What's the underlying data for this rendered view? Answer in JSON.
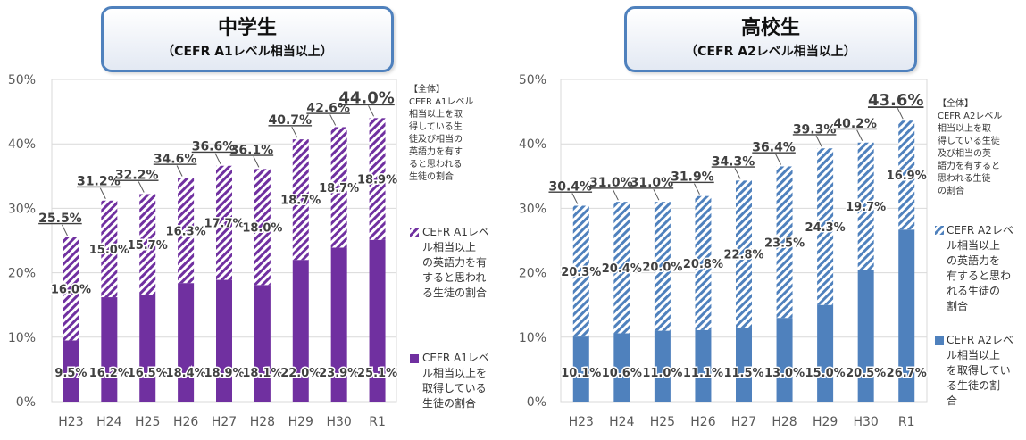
{
  "charts": [
    {
      "title": "中学生",
      "subtitle": "（CEFR A1レベル相当以上）",
      "legend_total": "【全体】\nCEFR A1レベル\n相当以上を取\n得している生\n徒及び相当の\n英語力を有す\nると思われる\n生徒の割合",
      "legend_lower": "CEFR A1レベ\nル相当以上を\n取得している\n生徒の割合",
      "legend_upper": "CEFR A1レベ\nル相当以上\nの英語力を有\nすると思われ\nる生徒の割合"
    },
    {
      "title": "高校生",
      "subtitle": "（CEFR A2レベル相当以上）",
      "legend_total": "【全体】\nCEFR A2レベル\n相当以上を取\n得している生徒\n及び相当の英\n語力を有すると\n思われる生徒\nの割合",
      "legend_lower": "CEFR A2レベ\nル相当以上\nを取得してい\nる生徒の割\n合",
      "legend_upper": "CEFR A2レベ\nル相当以上\nの英語力を\n有すると思わ\nれる生徒の\n割合"
    }
  ],
  "chart_data": [
    {
      "type": "bar",
      "stacked": true,
      "title": "中学生（CEFR A1レベル相当以上）",
      "categories": [
        "H23",
        "H24",
        "H25",
        "H26",
        "H27",
        "H28",
        "H29",
        "H30",
        "R1"
      ],
      "series": [
        {
          "name": "CEFR A1レベル相当以上を取得している生徒の割合",
          "values": [
            9.5,
            16.2,
            16.5,
            18.4,
            18.9,
            18.1,
            22.0,
            23.9,
            25.1
          ],
          "color": "#7030a0",
          "pattern": "solid"
        },
        {
          "name": "CEFR A1レベル相当以上の英語力を有すると思われる生徒の割合",
          "values": [
            16.0,
            15.0,
            15.7,
            16.3,
            17.7,
            18.0,
            18.7,
            18.7,
            18.9
          ],
          "color": "#7030a0",
          "pattern": "hatch"
        }
      ],
      "totals": [
        25.5,
        31.2,
        32.2,
        34.6,
        36.6,
        36.1,
        40.7,
        42.6,
        44.0
      ],
      "value_labels": [
        "9.5%",
        "16.2%",
        "16.5%",
        "18.4%",
        "18.9%",
        "18.1%",
        "22.0%",
        "23.9%",
        "25.1%"
      ],
      "upper_labels": [
        "16.0%",
        "15.0%",
        "15.7%",
        "16.3%",
        "17.7%",
        "18.0%",
        "18.7%",
        "18.7%",
        "18.9%"
      ],
      "total_labels": [
        "25.5%",
        "31.2%",
        "32.2%",
        "34.6%",
        "36.6%",
        "36.1%",
        "40.7%",
        "42.6%",
        "44.0%"
      ],
      "yticks": [
        "0%",
        "10%",
        "20%",
        "30%",
        "40%",
        "50%"
      ],
      "ylim": [
        0,
        50
      ]
    },
    {
      "type": "bar",
      "stacked": true,
      "title": "高校生（CEFR A2レベル相当以上）",
      "categories": [
        "H23",
        "H24",
        "H25",
        "H26",
        "H27",
        "H28",
        "H29",
        "H30",
        "R1"
      ],
      "series": [
        {
          "name": "CEFR A2レベル相当以上を取得している生徒の割合",
          "values": [
            10.1,
            10.6,
            11.0,
            11.1,
            11.5,
            13.0,
            15.0,
            20.5,
            26.7
          ],
          "color": "#4f81bd",
          "pattern": "solid"
        },
        {
          "name": "CEFR A2レベル相当以上の英語力を有すると思われる生徒の割合",
          "values": [
            20.3,
            20.4,
            20.0,
            20.8,
            22.8,
            23.5,
            24.3,
            19.7,
            16.9
          ],
          "color": "#4f81bd",
          "pattern": "hatch"
        }
      ],
      "totals": [
        30.4,
        31.0,
        31.0,
        31.9,
        34.3,
        36.4,
        39.3,
        40.2,
        43.6
      ],
      "value_labels": [
        "10.1%",
        "10.6%",
        "11.0%",
        "11.1%",
        "11.5%",
        "13.0%",
        "15.0%",
        "20.5%",
        "26.7%"
      ],
      "upper_labels": [
        "20.3%",
        "20.4%",
        "20.0%",
        "20.8%",
        "22.8%",
        "23.5%",
        "24.3%",
        "19.7%",
        "16.9%"
      ],
      "total_labels": [
        "30.4%",
        "31.0%",
        "31.0%",
        "31.9%",
        "34.3%",
        "36.4%",
        "39.3%",
        "40.2%",
        "43.6%"
      ],
      "yticks": [
        "0%",
        "10%",
        "20%",
        "30%",
        "40%",
        "50%"
      ],
      "ylim": [
        0,
        50
      ]
    }
  ]
}
